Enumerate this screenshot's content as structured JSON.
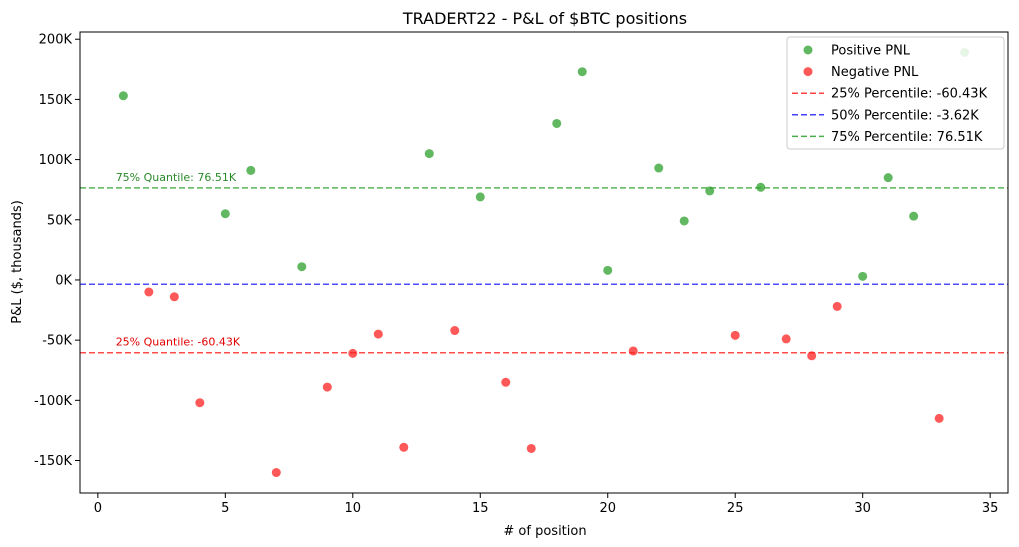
{
  "chart_data": {
    "type": "scatter",
    "title": "TRADERT22 - P&L of $BTC positions",
    "xlabel": "# of position",
    "ylabel": "P&L ($, thousands)",
    "xlim": [
      -0.7,
      35.7
    ],
    "ylim": [
      -177,
      206
    ],
    "xticks": [
      0,
      5,
      10,
      15,
      20,
      25,
      30,
      35
    ],
    "xtick_labels": [
      "0",
      "5",
      "10",
      "15",
      "20",
      "25",
      "30",
      "35"
    ],
    "yticks": [
      -150,
      -100,
      -50,
      0,
      50,
      100,
      150,
      200
    ],
    "ytick_labels": [
      "-150K",
      "-100K",
      "-50K",
      "0K",
      "50K",
      "100K",
      "150K",
      "200K"
    ],
    "grid": false,
    "legend_placement": "top-right",
    "series": [
      {
        "name": "Positive PNL",
        "color": "#2ca02c",
        "marker": "circle",
        "points": [
          {
            "x": 1,
            "y": 153
          },
          {
            "x": 5,
            "y": 55
          },
          {
            "x": 6,
            "y": 91
          },
          {
            "x": 8,
            "y": 11
          },
          {
            "x": 13,
            "y": 105
          },
          {
            "x": 15,
            "y": 69
          },
          {
            "x": 18,
            "y": 130
          },
          {
            "x": 19,
            "y": 173
          },
          {
            "x": 20,
            "y": 8
          },
          {
            "x": 22,
            "y": 93
          },
          {
            "x": 23,
            "y": 49
          },
          {
            "x": 24,
            "y": 74
          },
          {
            "x": 26,
            "y": 77
          },
          {
            "x": 30,
            "y": 3
          },
          {
            "x": 31,
            "y": 85
          },
          {
            "x": 32,
            "y": 53
          },
          {
            "x": 34,
            "y": 189
          }
        ]
      },
      {
        "name": "Negative PNL",
        "color": "#ff2020",
        "marker": "circle",
        "points": [
          {
            "x": 2,
            "y": -10
          },
          {
            "x": 3,
            "y": -14
          },
          {
            "x": 4,
            "y": -102
          },
          {
            "x": 7,
            "y": -160
          },
          {
            "x": 9,
            "y": -89
          },
          {
            "x": 10,
            "y": -61
          },
          {
            "x": 11,
            "y": -45
          },
          {
            "x": 12,
            "y": -139
          },
          {
            "x": 14,
            "y": -42
          },
          {
            "x": 16,
            "y": -85
          },
          {
            "x": 17,
            "y": -140
          },
          {
            "x": 21,
            "y": -59
          },
          {
            "x": 25,
            "y": -46
          },
          {
            "x": 27,
            "y": -49
          },
          {
            "x": 28,
            "y": -63
          },
          {
            "x": 29,
            "y": -22
          },
          {
            "x": 33,
            "y": -115
          }
        ]
      }
    ],
    "reference_lines": [
      {
        "name": "25% Percentile: -60.43K",
        "value": -60.43,
        "color": "#ff2020",
        "style": "dashed"
      },
      {
        "name": "50% Percentile: -3.62K",
        "value": -3.62,
        "color": "#2020ff",
        "style": "dashed"
      },
      {
        "name": "75% Percentile: 76.51K",
        "value": 76.51,
        "color": "#2ca02c",
        "style": "dashed"
      }
    ],
    "annotations": [
      {
        "text": "75% Quantile: 76.51K",
        "x": 0.7,
        "y": 76.51,
        "color": "#2a8a2a"
      },
      {
        "text": "25% Quantile: -60.43K",
        "x": 0.7,
        "y": -60.43,
        "color": "#e00000"
      }
    ]
  }
}
